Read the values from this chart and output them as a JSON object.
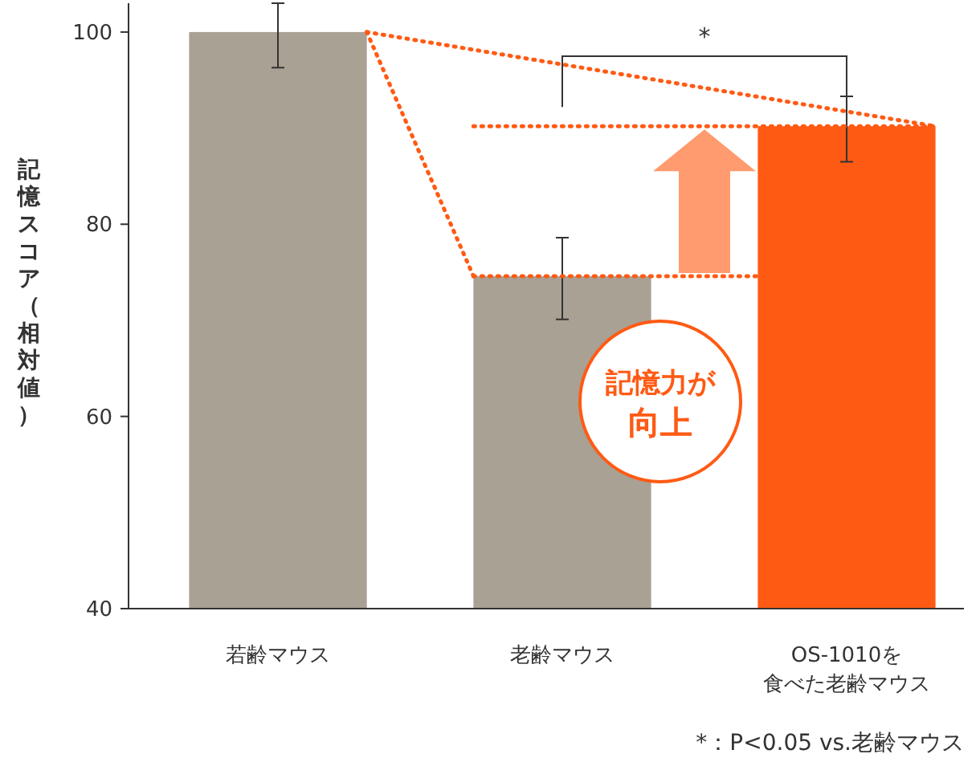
{
  "chart_data": {
    "type": "bar",
    "ylabel": "記憶スコア（相対値）",
    "categories": [
      "若齢マウス",
      "老齢マウス",
      "OS-1010を食べた老齢マウス"
    ],
    "ref_lines": [
      {
        "axis": "y",
        "value": 74.6,
        "color": "#ff5a14",
        "line_style": "dotted"
      },
      {
        "axis": "y",
        "value": 90.2,
        "color": "#ff5a14",
        "line_style": "dotted"
      }
    ],
    "values": [
      100,
      74.6,
      90.2
    ],
    "colors": [
      "#a8a194",
      "#a8a194",
      "#ff5a14"
    ],
    "errors": [
      [
        96.3,
        103
      ],
      [
        70.1,
        78.6
      ],
      [
        86.5,
        93.3
      ]
    ],
    "ylim": [
      40,
      103
    ],
    "yticks": [
      40,
      60,
      80,
      100
    ],
    "grid": false,
    "annotations": [
      "*",
      "記憶力が向上",
      "*：P<0.05 vs.老齢マウス"
    ]
  }
}
